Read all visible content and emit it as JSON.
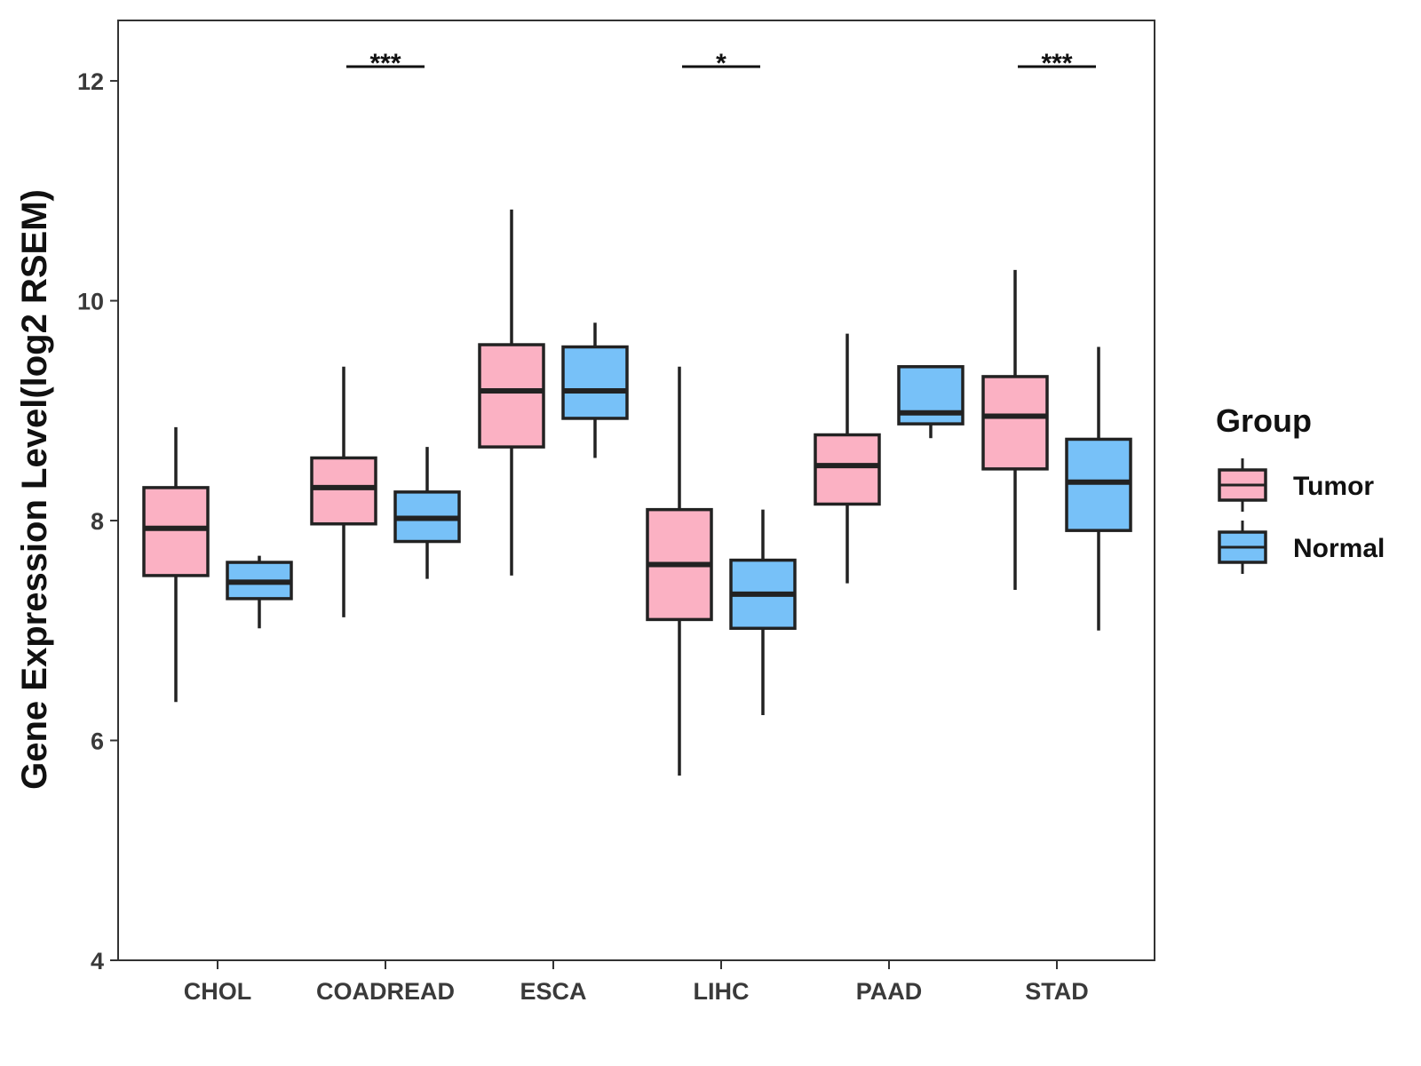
{
  "chart_data": {
    "type": "boxplot",
    "title": "",
    "xlabel": "",
    "ylabel": "Gene Expression Level(log2 RSEM)",
    "ylim": [
      4,
      12.55
    ],
    "yticks": [
      4,
      6,
      8,
      10,
      12
    ],
    "ytick_labels": [
      "4",
      "6",
      "8",
      "10",
      "12"
    ],
    "grid": false,
    "categories": [
      "CHOL",
      "COADREAD",
      "ESCA",
      "LIHC",
      "PAAD",
      "STAD"
    ],
    "legend": {
      "title": "Group",
      "position": "right",
      "entries": [
        {
          "name": "Tumor",
          "color": "#fbb1c3"
        },
        {
          "name": "Normal",
          "color": "#77c1f8"
        }
      ]
    },
    "series": [
      {
        "name": "Tumor",
        "color": "#fbb1c3",
        "boxes": [
          {
            "category": "CHOL",
            "whisker_low": 6.35,
            "q1": 7.5,
            "median": 7.93,
            "q3": 8.3,
            "whisker_high": 8.85
          },
          {
            "category": "COADREAD",
            "whisker_low": 7.12,
            "q1": 7.97,
            "median": 8.3,
            "q3": 8.57,
            "whisker_high": 9.4
          },
          {
            "category": "ESCA",
            "whisker_low": 7.5,
            "q1": 8.67,
            "median": 9.18,
            "q3": 9.6,
            "whisker_high": 10.83
          },
          {
            "category": "LIHC",
            "whisker_low": 5.68,
            "q1": 7.1,
            "median": 7.6,
            "q3": 8.1,
            "whisker_high": 9.4
          },
          {
            "category": "PAAD",
            "whisker_low": 7.43,
            "q1": 8.15,
            "median": 8.5,
            "q3": 8.78,
            "whisker_high": 9.7
          },
          {
            "category": "STAD",
            "whisker_low": 7.37,
            "q1": 8.47,
            "median": 8.95,
            "q3": 9.31,
            "whisker_high": 10.28
          }
        ]
      },
      {
        "name": "Normal",
        "color": "#77c1f8",
        "boxes": [
          {
            "category": "CHOL",
            "whisker_low": 7.02,
            "q1": 7.29,
            "median": 7.44,
            "q3": 7.62,
            "whisker_high": 7.68
          },
          {
            "category": "COADREAD",
            "whisker_low": 7.47,
            "q1": 7.81,
            "median": 8.02,
            "q3": 8.26,
            "whisker_high": 8.67
          },
          {
            "category": "ESCA",
            "whisker_low": 8.57,
            "q1": 8.93,
            "median": 9.18,
            "q3": 9.58,
            "whisker_high": 9.8
          },
          {
            "category": "LIHC",
            "whisker_low": 6.23,
            "q1": 7.02,
            "median": 7.33,
            "q3": 7.64,
            "whisker_high": 8.1
          },
          {
            "category": "PAAD",
            "whisker_low": 8.75,
            "q1": 8.88,
            "median": 8.98,
            "q3": 9.4,
            "whisker_high": 9.4
          },
          {
            "category": "STAD",
            "whisker_low": 7.0,
            "q1": 7.91,
            "median": 8.35,
            "q3": 8.74,
            "whisker_high": 9.58
          }
        ]
      }
    ],
    "annotations": [
      {
        "category": "COADREAD",
        "label": "***",
        "y": 12.13
      },
      {
        "category": "LIHC",
        "label": "*",
        "y": 12.13
      },
      {
        "category": "STAD",
        "label": "***",
        "y": 12.13
      }
    ]
  }
}
